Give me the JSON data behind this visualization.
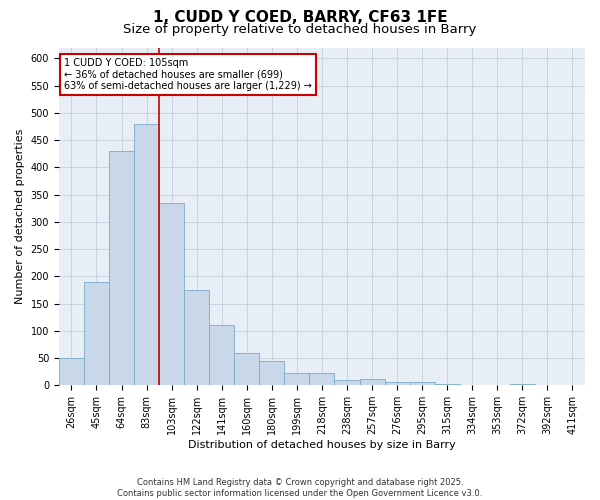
{
  "title1": "1, CUDD Y COED, BARRY, CF63 1FE",
  "title2": "Size of property relative to detached houses in Barry",
  "xlabel": "Distribution of detached houses by size in Barry",
  "ylabel": "Number of detached properties",
  "categories": [
    "26sqm",
    "45sqm",
    "64sqm",
    "83sqm",
    "103sqm",
    "122sqm",
    "141sqm",
    "160sqm",
    "180sqm",
    "199sqm",
    "218sqm",
    "238sqm",
    "257sqm",
    "276sqm",
    "295sqm",
    "315sqm",
    "334sqm",
    "353sqm",
    "372sqm",
    "392sqm",
    "411sqm"
  ],
  "values": [
    50,
    190,
    430,
    480,
    335,
    175,
    110,
    60,
    45,
    22,
    22,
    10,
    11,
    5,
    5,
    2,
    0,
    0,
    2,
    0,
    0
  ],
  "bar_color": "#c8d8e8",
  "bar_edge_color": "#7aaac8",
  "grid_color": "#c8d4e0",
  "bg_color": "#e8eef5",
  "vline_x_index": 4,
  "vline_color": "#cc0000",
  "annotation_line1": "1 CUDD Y COED: 105sqm",
  "annotation_line2": "← 36% of detached houses are smaller (699)",
  "annotation_line3": "63% of semi-detached houses are larger (1,229) →",
  "annotation_box_color": "#cc0000",
  "ylim": [
    0,
    620
  ],
  "yticks": [
    0,
    50,
    100,
    150,
    200,
    250,
    300,
    350,
    400,
    450,
    500,
    550,
    600
  ],
  "footnote": "Contains HM Land Registry data © Crown copyright and database right 2025.\nContains public sector information licensed under the Open Government Licence v3.0.",
  "title_fontsize": 11,
  "subtitle_fontsize": 9.5,
  "axis_label_fontsize": 8,
  "tick_fontsize": 7,
  "annotation_fontsize": 7,
  "footnote_fontsize": 6
}
